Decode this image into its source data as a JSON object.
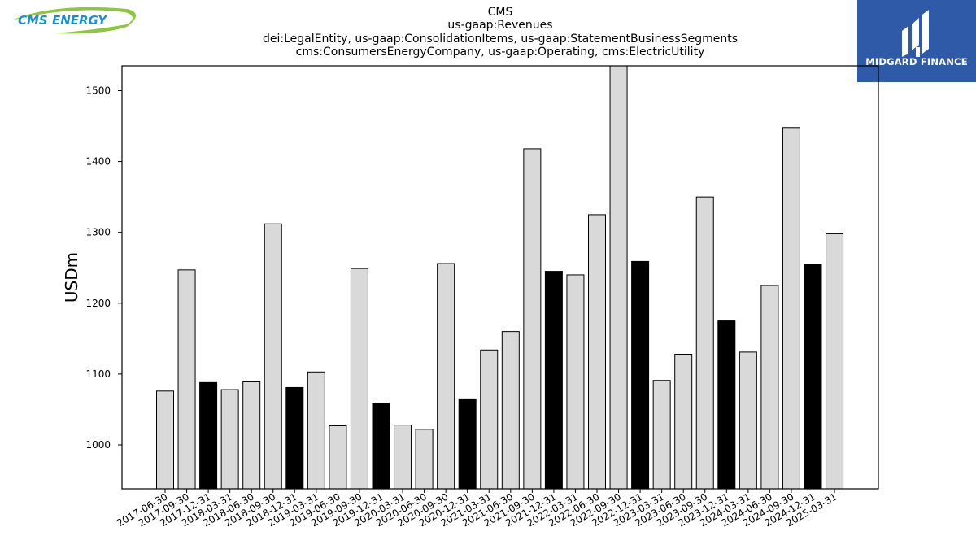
{
  "title_lines": [
    "CMS",
    "us-gaap:Revenues",
    "dei:LegalEntity, us-gaap:ConsolidationItems, us-gaap:StatementBusinessSegments",
    "cms:ConsumersEnergyCompany, us-gaap:Operating, cms:ElectricUtility"
  ],
  "logos": {
    "left_text": "CMS ENERGY",
    "right_text": "MIDGARD FINANCE"
  },
  "colors": {
    "bar_default": "#d9d9d9",
    "bar_highlight": "#000000",
    "brand_blue": "#2f5aa8",
    "cms_blue": "#1a8fd0",
    "cms_green": "#8dc63f"
  },
  "chart_data": {
    "type": "bar",
    "ylabel": "USDm",
    "xlabel": "",
    "ylim": [
      938,
      1535
    ],
    "yticks": [
      1000,
      1100,
      1200,
      1300,
      1400,
      1500
    ],
    "grid": false,
    "highlight_rule": "fiscal year-end quarters (12-31) drawn in black",
    "categories": [
      "2017-06-30",
      "2017-09-30",
      "2017-12-31",
      "2018-03-31",
      "2018-06-30",
      "2018-09-30",
      "2018-12-31",
      "2019-03-31",
      "2019-06-30",
      "2019-09-30",
      "2019-12-31",
      "2020-03-31",
      "2020-06-30",
      "2020-09-30",
      "2020-12-31",
      "2021-03-31",
      "2021-06-30",
      "2021-09-30",
      "2021-12-31",
      "2022-03-31",
      "2022-06-30",
      "2022-09-30",
      "2022-12-31",
      "2023-03-31",
      "2023-06-30",
      "2023-09-30",
      "2023-12-31",
      "2024-03-31",
      "2024-06-30",
      "2024-09-30",
      "2024-12-31",
      "2025-03-31"
    ],
    "values": [
      1076,
      1247,
      1088,
      1078,
      1089,
      1312,
      1081,
      1103,
      1027,
      1249,
      1059,
      1028,
      1022,
      1256,
      1065,
      1134,
      1160,
      1418,
      1245,
      1240,
      1325,
      1540,
      1259,
      1091,
      1128,
      1350,
      1175,
      1131,
      1225,
      1448,
      1255,
      1298
    ],
    "highlight": [
      false,
      false,
      true,
      false,
      false,
      false,
      true,
      false,
      false,
      false,
      true,
      false,
      false,
      false,
      true,
      false,
      false,
      false,
      true,
      false,
      false,
      false,
      true,
      false,
      false,
      false,
      true,
      false,
      false,
      false,
      true,
      false
    ]
  }
}
